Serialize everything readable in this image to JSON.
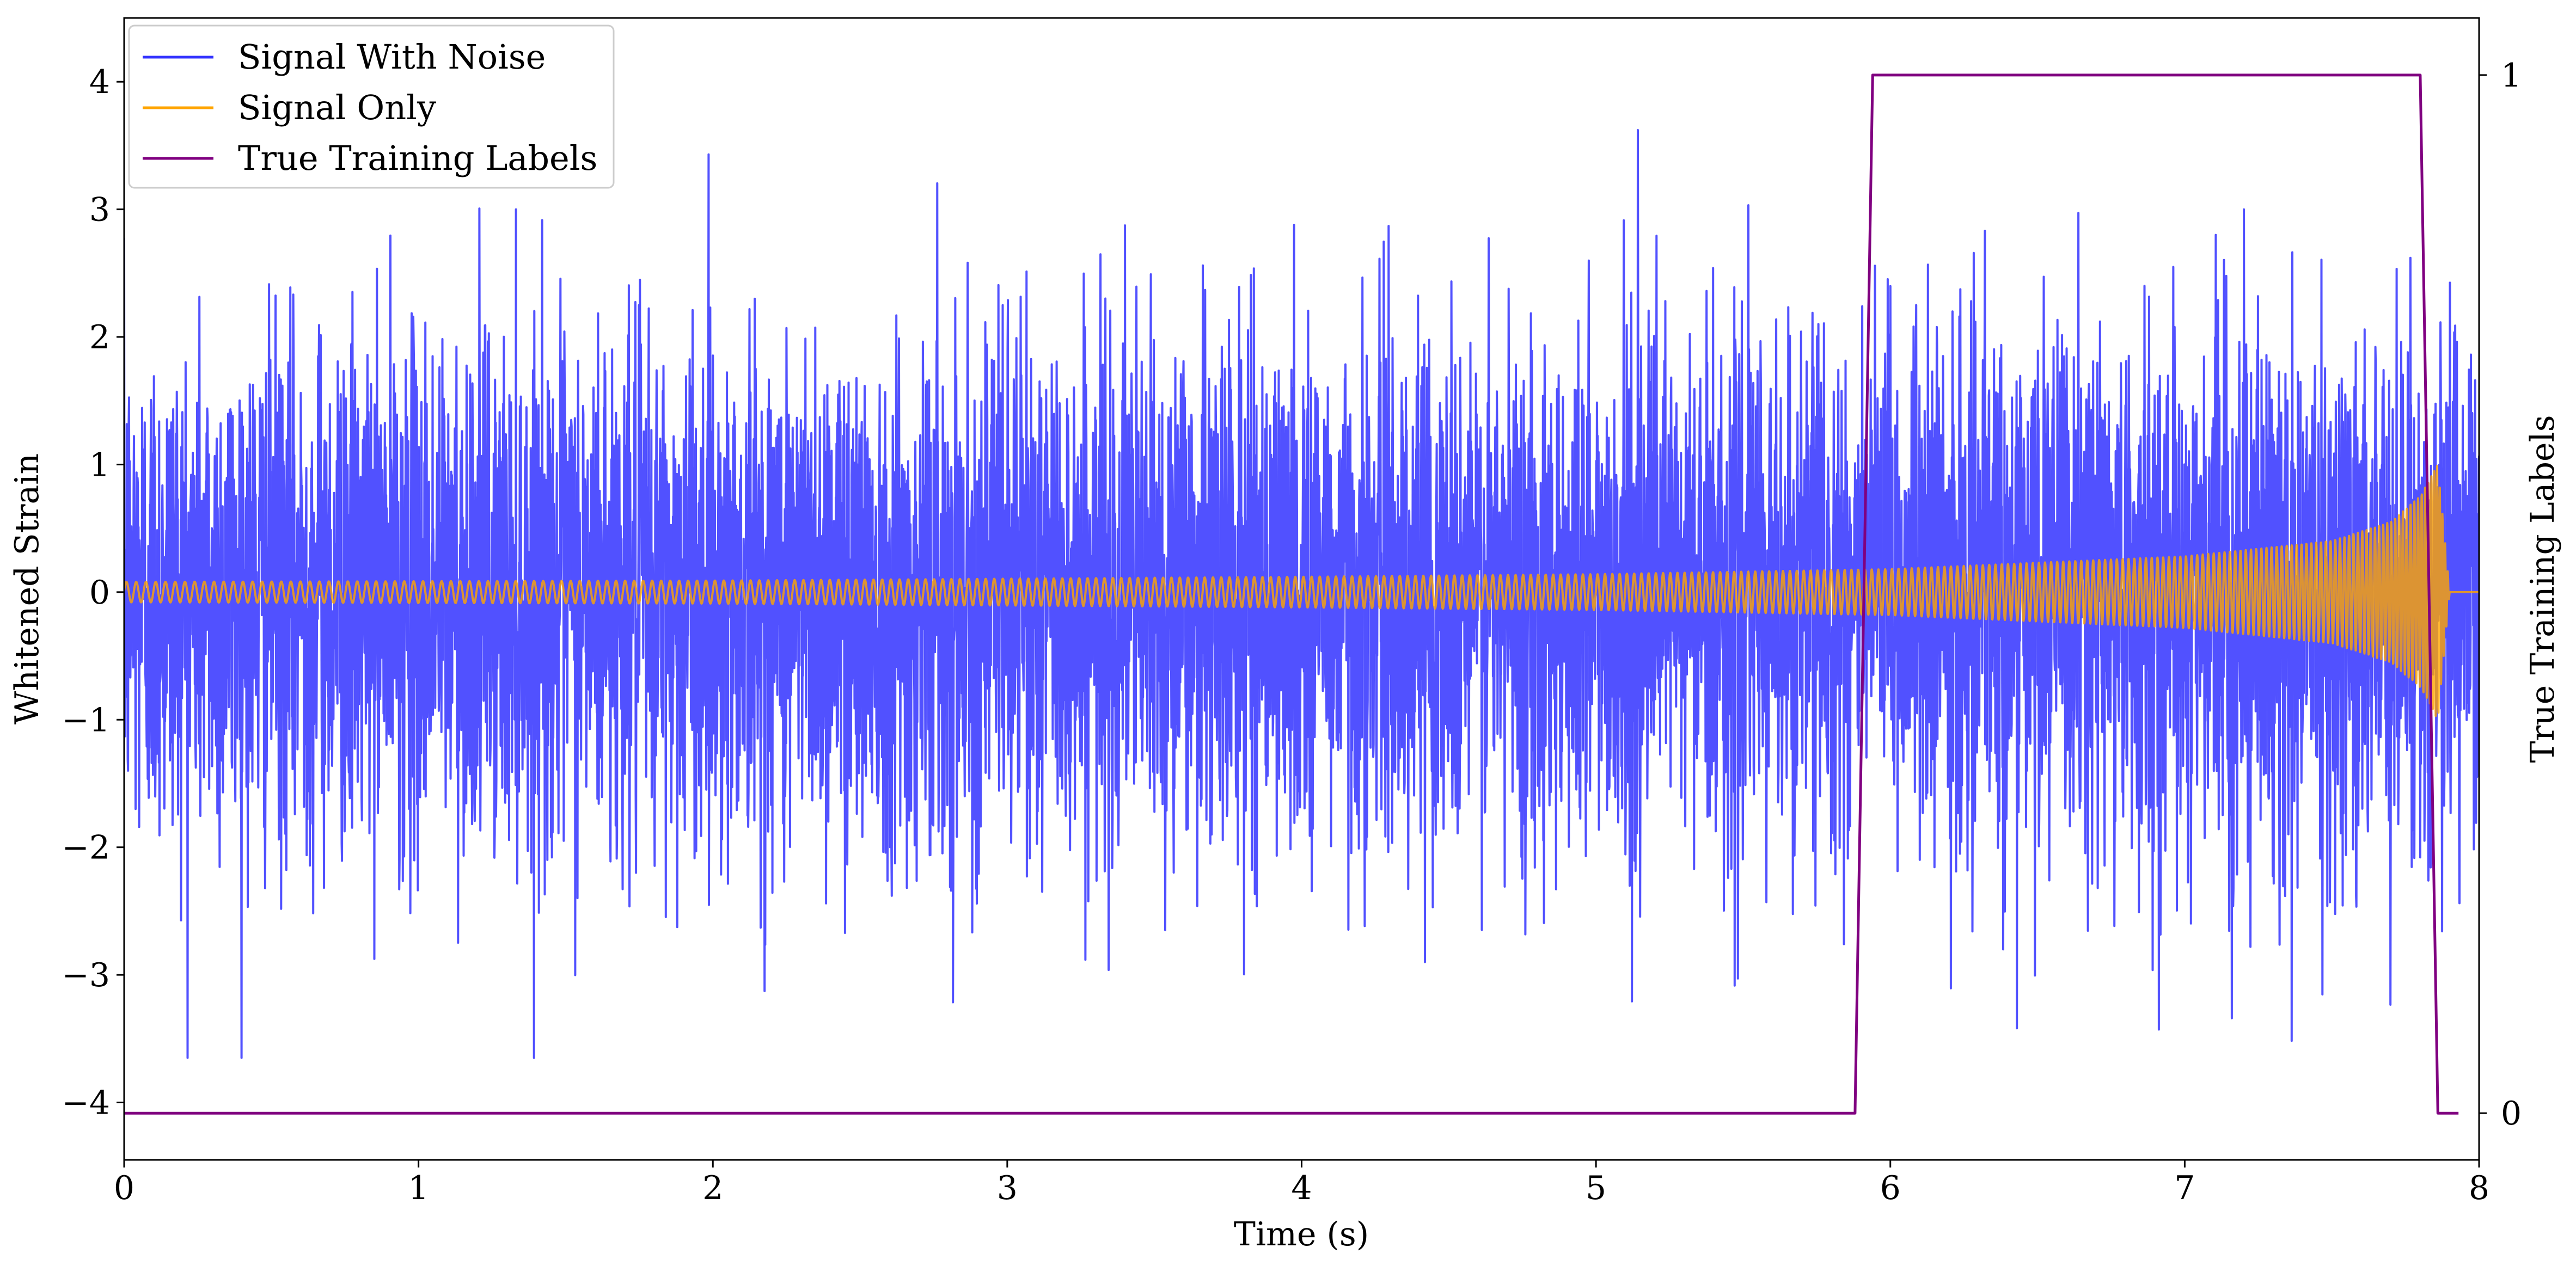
{
  "chart_data": {
    "type": "line",
    "title": "",
    "xlabel": "Time (s)",
    "ylabel": "Whitened Strain",
    "y2label": "True Training Labels",
    "xlim": [
      0,
      8
    ],
    "ylim": [
      -4.45,
      4.5
    ],
    "y2lim": [
      -0.045,
      1.055
    ],
    "x_ticks": [
      0,
      1,
      2,
      3,
      4,
      5,
      6,
      7,
      8
    ],
    "x_tick_labels": [
      "0",
      "1",
      "2",
      "3",
      "4",
      "5",
      "6",
      "7",
      "8"
    ],
    "y_ticks": [
      -4,
      -3,
      -2,
      -1,
      0,
      1,
      2,
      3,
      4
    ],
    "y_tick_labels": [
      "−4",
      "−3",
      "−2",
      "−1",
      "0",
      "1",
      "2",
      "3",
      "4"
    ],
    "y2_ticks": [
      0,
      1
    ],
    "y2_tick_labels": [
      "0",
      "1"
    ],
    "grid": false,
    "legend_position": "top-left",
    "series": [
      {
        "name": "Signal With Noise",
        "color": "#3333ff",
        "axis": "left",
        "kind": "gaussian-noise",
        "x_range": [
          0,
          8
        ],
        "std": 1.0,
        "min": -3.65,
        "max": 4.02
      },
      {
        "name": "Signal Only",
        "color": "#ffa500",
        "axis": "left",
        "kind": "chirp",
        "x_range": [
          0,
          8
        ],
        "coalescence_time": 7.86,
        "amplitude_envelope": {
          "x": [
            0,
            2,
            4,
            5,
            6,
            7,
            7.5,
            7.7,
            7.8,
            7.86,
            7.9,
            8.0
          ],
          "y": [
            0.08,
            0.09,
            0.12,
            0.14,
            0.18,
            0.28,
            0.4,
            0.55,
            0.75,
            1.0,
            0.0,
            0.0
          ]
        },
        "frequency_hz": {
          "x": [
            0,
            4,
            6,
            7,
            7.5,
            7.8,
            7.86
          ],
          "y": [
            30,
            36,
            44,
            52,
            62,
            80,
            110
          ]
        }
      },
      {
        "name": "True Training Labels",
        "color": "#800080",
        "axis": "right",
        "kind": "line",
        "x": [
          0,
          5.88,
          5.94,
          7.8,
          7.86,
          7.93
        ],
        "y": [
          0,
          0,
          1,
          1,
          0,
          0
        ]
      }
    ]
  }
}
